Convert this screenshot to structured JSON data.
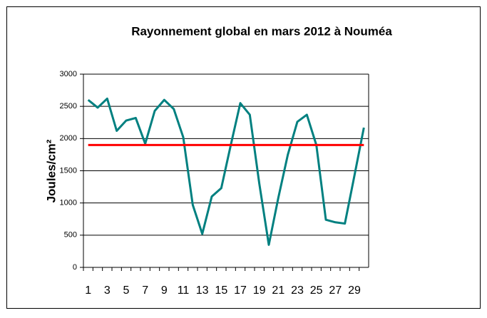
{
  "chart_data": {
    "type": "line",
    "title": "Rayonnement global en mars 2012 à Nouméa",
    "y_label": "Joules/cm²",
    "categories": [
      1,
      null,
      3,
      null,
      5,
      null,
      7,
      null,
      9,
      null,
      11,
      null,
      13,
      null,
      15,
      null,
      17,
      null,
      19,
      null,
      21,
      null,
      23,
      null,
      25,
      null,
      27,
      null,
      29,
      null
    ],
    "series": [
      {
        "color": "#008080",
        "values": [
          2600,
          2480,
          2620,
          2120,
          2280,
          2320,
          1920,
          2430,
          2600,
          2460,
          2020,
          970,
          520,
          1100,
          1230,
          1900,
          2550,
          2370,
          1300,
          350,
          1080,
          1750,
          2260,
          2370,
          1900,
          740,
          700,
          680,
          1420,
          2170
        ]
      },
      {
        "color": "#ff0000",
        "values": [
          1900,
          1900,
          1900,
          1900,
          1900,
          1900,
          1900,
          1900,
          1900,
          1900,
          1900,
          1900,
          1900,
          1900,
          1900,
          1900,
          1900,
          1900,
          1900,
          1900,
          1900,
          1900,
          1900,
          1900,
          1900,
          1900,
          1900,
          1900,
          1900,
          1900
        ]
      }
    ],
    "ylim": [
      0,
      3000
    ],
    "yticks": [
      0,
      500,
      1000,
      1500,
      2000,
      2500,
      3000
    ],
    "grid": true
  }
}
